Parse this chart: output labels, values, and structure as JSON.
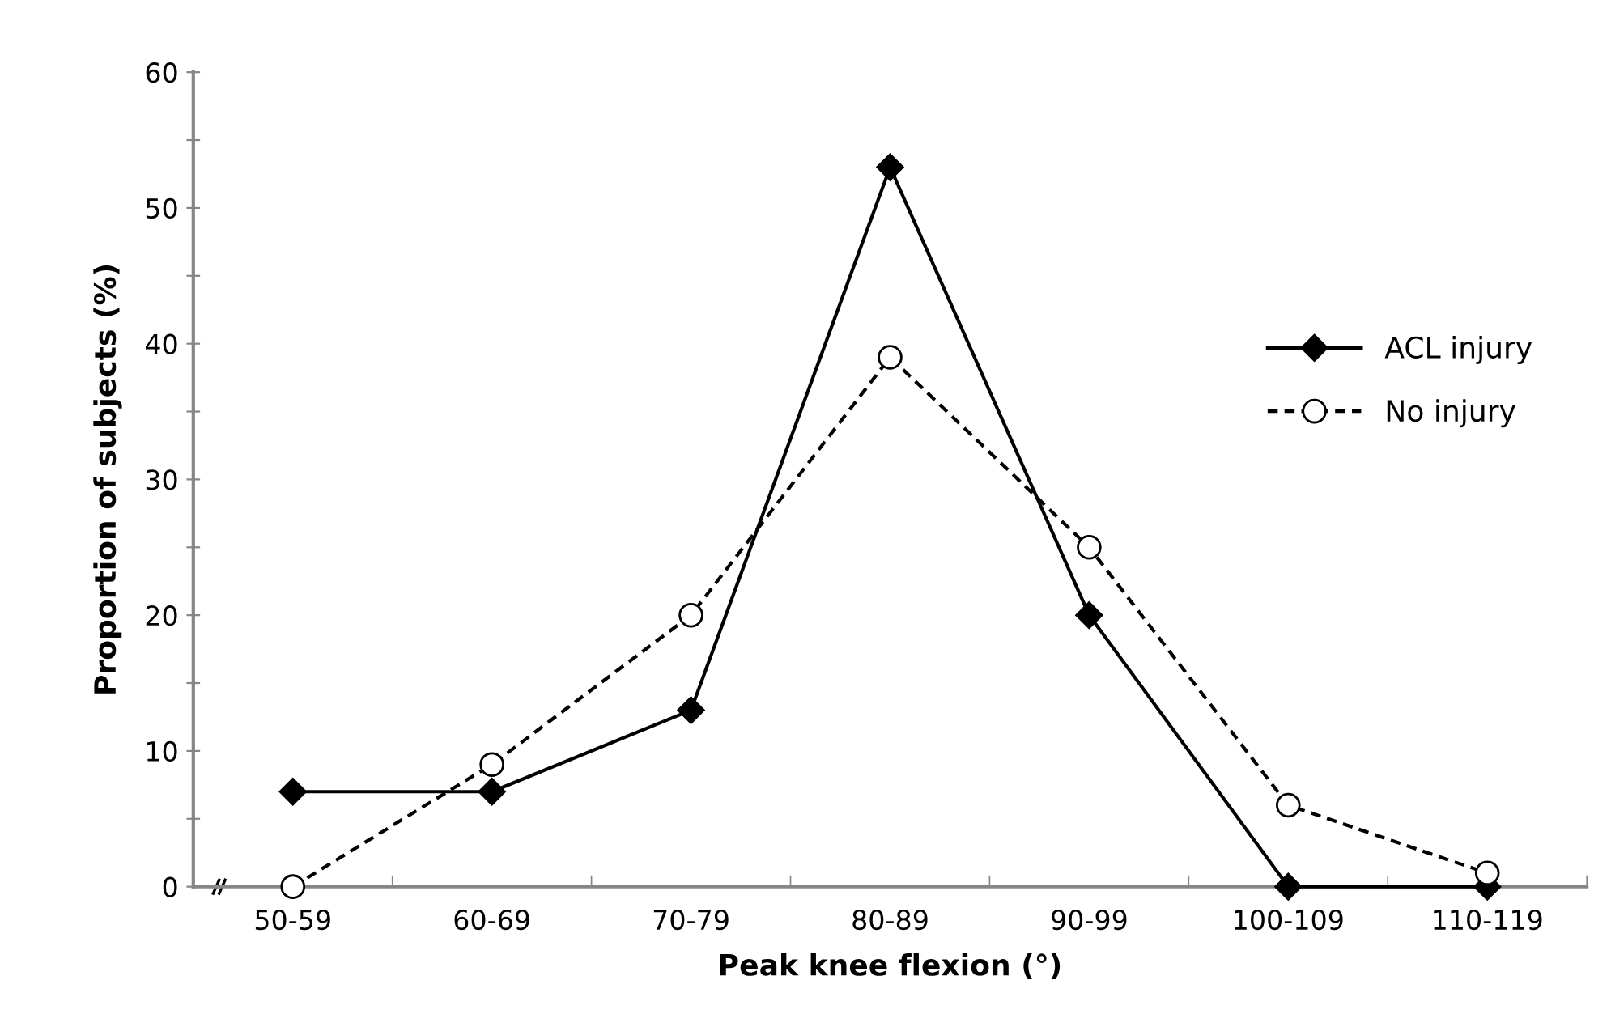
{
  "chart_data": {
    "type": "line",
    "xlabel": "Peak knee flexion (°)",
    "ylabel": "Proportion of subjects (%)",
    "categories": [
      "50-59",
      "60-69",
      "70-79",
      "80-89",
      "90-99",
      "100-109",
      "110-119"
    ],
    "series": [
      {
        "name": "ACL injury",
        "color": "#000000",
        "marker": "diamond",
        "line_style": "solid",
        "values": [
          7,
          7,
          13,
          53,
          20,
          0,
          0
        ]
      },
      {
        "name": "No injury",
        "color": "#000000",
        "marker": "circle",
        "line_style": "dashed",
        "values": [
          0,
          9,
          20,
          39,
          25,
          6,
          1
        ]
      }
    ],
    "ylim": [
      0,
      60
    ],
    "yticks": [
      0,
      {
        "value": 5,
        "label": null
      },
      10,
      {
        "value": 15,
        "label": null
      },
      20,
      {
        "value": 25,
        "label": null
      },
      30,
      {
        "value": 35,
        "label": null
      },
      40,
      {
        "value": 45,
        "label": null
      },
      50,
      {
        "value": 55,
        "label": null
      },
      60
    ],
    "grid": false,
    "legend": "right"
  }
}
